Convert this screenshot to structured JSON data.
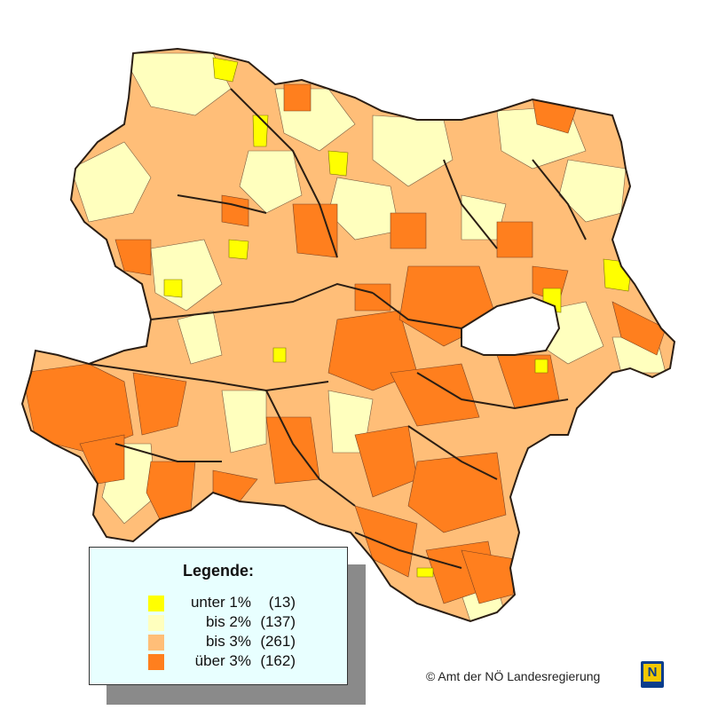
{
  "colors": {
    "under_1": "#ffff00",
    "bis_2": "#ffffbe",
    "bis_3": "#ffbe78",
    "ueber_3": "#ff7f1e",
    "border": "#3a2a20",
    "lake": "#ffffff"
  },
  "legend": {
    "title": "Legende:",
    "items": [
      {
        "label": "unter 1%",
        "count": "(13)",
        "color": "#ffff00"
      },
      {
        "label": "bis 2%",
        "count": "(137)",
        "color": "#ffffbe"
      },
      {
        "label": "bis 3%",
        "count": "(261)",
        "color": "#ffbe78"
      },
      {
        "label": "über 3%",
        "count": "(162)",
        "color": "#ff7f1e"
      }
    ]
  },
  "copyright": "© Amt der NÖ Landesregierung",
  "logo_letter": "N"
}
